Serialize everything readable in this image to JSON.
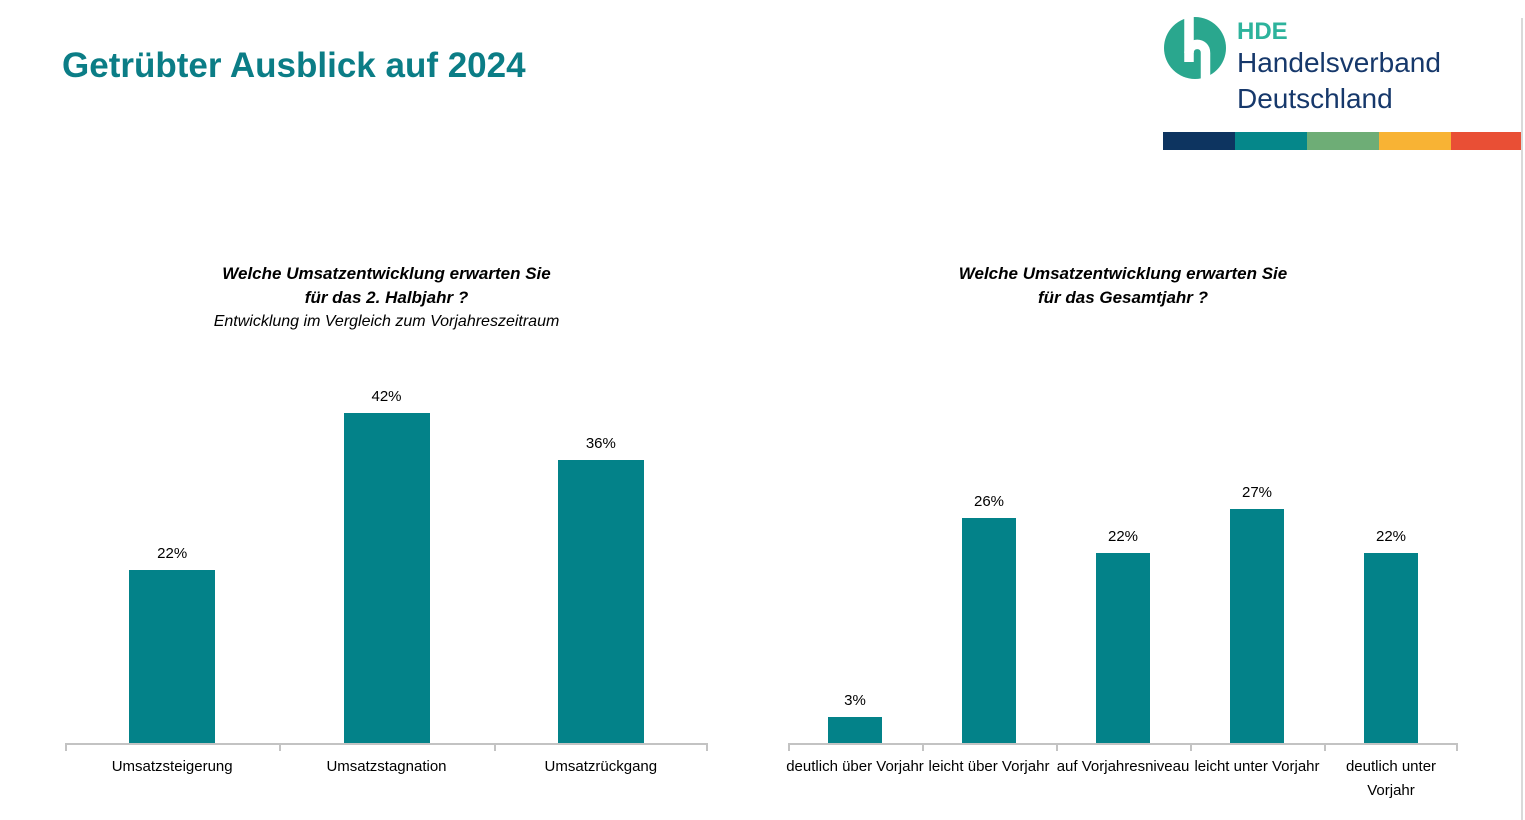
{
  "page": {
    "title": "Getrübter Ausblick auf 2024",
    "title_color": "#0b7d86"
  },
  "logo": {
    "acronym": "HDE",
    "name_line1": "Handelsverband",
    "name_line2": "Deutschland",
    "circle_color": "#2aa78e",
    "acronym_color": "#2db39c",
    "name_color": "#16386b",
    "stripe_colors": [
      "#0d3460",
      "#05878a",
      "#6ead76",
      "#f8b334",
      "#e94f35"
    ]
  },
  "chart_data": [
    {
      "type": "bar",
      "title_lines": [
        "Welche Umsatzentwicklung erwarten Sie",
        "für das 2. Halbjahr ?"
      ],
      "subtitle": "Entwicklung im Vergleich zum Vorjahreszeitraum",
      "categories": [
        "Umsatzsteigerung",
        "Umsatzstagnation",
        "Umsatzrückgang"
      ],
      "values": [
        22,
        42,
        36
      ],
      "value_labels": [
        "22%",
        "42%",
        "36%"
      ],
      "unit": "%",
      "bar_color": "#038289",
      "ylim": [
        0,
        45
      ],
      "grid": false,
      "legend": "none"
    },
    {
      "type": "bar",
      "title_lines": [
        "Welche Umsatzentwicklung erwarten Sie",
        "für das Gesamtjahr ?"
      ],
      "subtitle": "",
      "categories": [
        "deutlich über Vorjahr",
        "leicht über Vorjahr",
        "auf Vorjahresniveau",
        "leicht unter Vorjahr",
        "deutlich unter Vorjahr"
      ],
      "values": [
        3,
        26,
        22,
        27,
        22
      ],
      "value_labels": [
        "3%",
        "26%",
        "22%",
        "27%",
        "22%"
      ],
      "unit": "%",
      "bar_color": "#038289",
      "ylim": [
        0,
        30
      ],
      "grid": false,
      "legend": "none"
    }
  ]
}
